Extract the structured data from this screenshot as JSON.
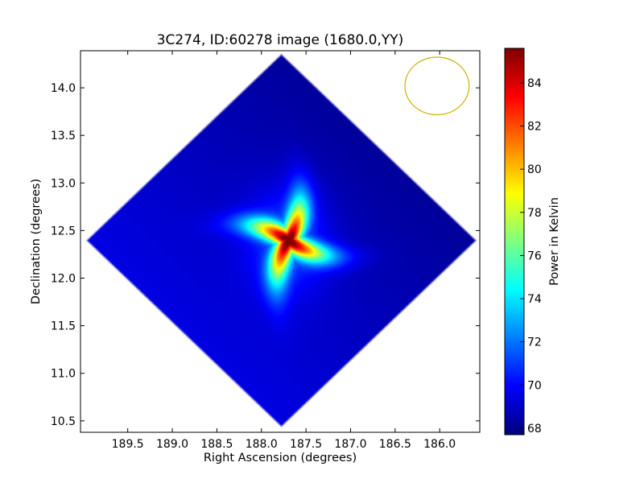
{
  "chart_data": {
    "type": "heatmap",
    "title": "3C274, ID:60278 image (1680.0,YY)",
    "xlabel": "Right Ascension (degrees)",
    "ylabel": "Declination (degrees)",
    "xlim": [
      190.03,
      185.55
    ],
    "ylim": [
      10.38,
      14.39
    ],
    "xticks": [
      189.5,
      189.0,
      188.5,
      188.0,
      187.5,
      187.0,
      186.5,
      186.0
    ],
    "xtick_labels": [
      "189.5",
      "189.0",
      "188.5",
      "188.0",
      "187.5",
      "187.0",
      "186.5",
      "186.0"
    ],
    "yticks": [
      10.5,
      11.0,
      11.5,
      12.0,
      12.5,
      13.0,
      13.5,
      14.0
    ],
    "ytick_labels": [
      "10.5",
      "11.0",
      "11.5",
      "12.0",
      "12.5",
      "13.0",
      "13.5",
      "14.0"
    ],
    "colormap": "jet",
    "colorbar": {
      "label": "Power in Kelvin",
      "range": [
        67.7,
        85.6
      ],
      "ticks": [
        68,
        70,
        72,
        74,
        76,
        78,
        80,
        82,
        84
      ],
      "tick_labels": [
        "68",
        "70",
        "72",
        "74",
        "76",
        "78",
        "80",
        "82",
        "84"
      ]
    },
    "field_outline": {
      "shape": "diamond",
      "vertices": [
        [
          187.72,
          14.37
        ],
        [
          185.58,
          12.4
        ],
        [
          187.7,
          10.43
        ],
        [
          189.98,
          12.4
        ]
      ]
    },
    "source": {
      "ra": 187.7,
      "dec": 12.4,
      "peak": 85.6,
      "background_low": 68.0,
      "background_high": 69.6
    },
    "beam": {
      "ra": 186.03,
      "dec": 14.02,
      "radius_deg": 0.36,
      "color": "#c8b400"
    }
  }
}
